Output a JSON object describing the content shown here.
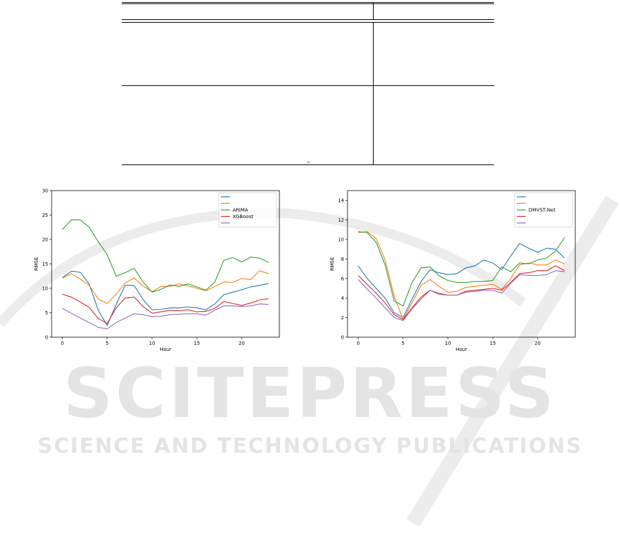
{
  "watermark": {
    "main": "SCITEPRESS",
    "sub": "SCIENCE AND TECHNOLOGY PUBLICATIONS"
  },
  "table": {
    "footnote_mark": "‾"
  },
  "chart_data": [
    {
      "type": "line",
      "xlabel": "Hour",
      "ylabel": "RMSE",
      "xlim": [
        -1.2,
        24.2
      ],
      "ylim": [
        0,
        30
      ],
      "xticks": [
        0,
        5,
        10,
        15,
        20
      ],
      "yticks": [
        0,
        5,
        10,
        15,
        20,
        25,
        30
      ],
      "legend_position": "top-right",
      "grid": false,
      "x": [
        0,
        1,
        2,
        3,
        4,
        5,
        6,
        7,
        8,
        9,
        10,
        11,
        12,
        13,
        14,
        15,
        16,
        17,
        18,
        19,
        20,
        21,
        22,
        23
      ],
      "series": [
        {
          "name": "",
          "color": "#1f77b4",
          "values": [
            12.2,
            13.5,
            13.3,
            10.8,
            5.5,
            2.4,
            6.7,
            10.6,
            10.6,
            7.7,
            5.6,
            5.7,
            6.0,
            6.0,
            6.2,
            6.0,
            5.6,
            6.8,
            8.7,
            9.2,
            9.7,
            10.3,
            10.6,
            11.0
          ]
        },
        {
          "name": "",
          "color": "#ff7f0e",
          "values": [
            12.1,
            13.0,
            11.9,
            10.6,
            7.8,
            6.9,
            8.8,
            11.1,
            12.1,
            10.5,
            9.3,
            10.4,
            10.4,
            10.9,
            10.5,
            10.0,
            9.5,
            10.4,
            11.3,
            11.2,
            12.0,
            11.8,
            13.6,
            13.0
          ]
        },
        {
          "name": "ARIMA",
          "color": "#2ca02c",
          "values": [
            22.0,
            24.0,
            24.0,
            22.5,
            19.5,
            16.9,
            12.5,
            13.2,
            14.1,
            11.3,
            9.2,
            9.8,
            10.7,
            10.4,
            10.9,
            10.3,
            9.6,
            11.3,
            15.7,
            16.3,
            15.4,
            16.4,
            16.2,
            15.3
          ]
        },
        {
          "name": "XGBoost",
          "color": "#d62728",
          "values": [
            8.8,
            8.2,
            7.2,
            6.1,
            3.8,
            2.8,
            6.0,
            8.0,
            8.2,
            6.3,
            4.9,
            5.2,
            5.5,
            5.4,
            5.6,
            5.2,
            5.3,
            5.9,
            7.3,
            6.9,
            6.5,
            7.0,
            7.6,
            7.9
          ]
        },
        {
          "name": "",
          "color": "#9467bd",
          "values": [
            5.9,
            4.9,
            3.9,
            3.0,
            2.0,
            1.7,
            3.0,
            3.9,
            4.8,
            4.6,
            4.2,
            4.3,
            4.6,
            4.7,
            4.8,
            4.8,
            4.5,
            5.5,
            6.4,
            6.4,
            6.3,
            6.4,
            6.8,
            6.7
          ]
        }
      ]
    },
    {
      "type": "line",
      "xlabel": "Hour",
      "ylabel": "RMSE",
      "xlim": [
        -1.2,
        24.2
      ],
      "ylim": [
        0,
        15
      ],
      "xticks": [
        0,
        5,
        10,
        15,
        20
      ],
      "yticks": [
        0,
        2,
        4,
        6,
        8,
        10,
        12,
        14
      ],
      "legend_position": "top-right",
      "grid": false,
      "x": [
        0,
        1,
        2,
        3,
        4,
        5,
        6,
        7,
        8,
        9,
        10,
        11,
        12,
        13,
        14,
        15,
        16,
        17,
        18,
        19,
        20,
        21,
        22,
        23
      ],
      "series": [
        {
          "name": "",
          "color": "#1f77b4",
          "values": [
            7.3,
            6.0,
            5.0,
            4.0,
            2.5,
            2.0,
            3.9,
            5.7,
            6.9,
            6.6,
            6.4,
            6.5,
            7.1,
            7.3,
            7.9,
            7.6,
            6.9,
            8.3,
            9.6,
            9.1,
            8.7,
            9.1,
            9.0,
            8.1
          ]
        },
        {
          "name": "",
          "color": "#ff7f0e",
          "values": [
            10.7,
            10.8,
            10.1,
            7.9,
            4.2,
            1.8,
            3.5,
            5.3,
            5.9,
            5.2,
            4.6,
            4.7,
            5.1,
            5.2,
            5.3,
            5.4,
            4.9,
            6.0,
            7.4,
            7.6,
            7.4,
            7.4,
            7.9,
            7.5
          ]
        },
        {
          "name": "DMVST-Net",
          "color": "#2ca02c",
          "values": [
            10.8,
            10.7,
            9.7,
            7.4,
            3.7,
            3.2,
            5.6,
            7.1,
            7.2,
            6.3,
            5.8,
            5.6,
            5.6,
            5.7,
            5.7,
            5.8,
            7.2,
            6.7,
            7.6,
            7.5,
            7.9,
            8.1,
            8.8,
            10.2
          ]
        },
        {
          "name": "",
          "color": "#d62728",
          "values": [
            6.3,
            5.4,
            4.5,
            3.5,
            2.3,
            1.8,
            3.0,
            4.1,
            4.8,
            4.4,
            4.3,
            4.3,
            4.7,
            4.8,
            4.9,
            5.0,
            4.8,
            5.6,
            6.5,
            6.6,
            6.8,
            6.8,
            7.3,
            6.8
          ]
        },
        {
          "name": "",
          "color": "#9467bd",
          "values": [
            5.9,
            4.9,
            4.0,
            3.0,
            2.0,
            1.7,
            2.9,
            3.9,
            4.8,
            4.5,
            4.3,
            4.3,
            4.6,
            4.7,
            4.8,
            4.8,
            4.5,
            5.5,
            6.4,
            6.3,
            6.3,
            6.4,
            6.8,
            6.7
          ]
        }
      ]
    }
  ]
}
